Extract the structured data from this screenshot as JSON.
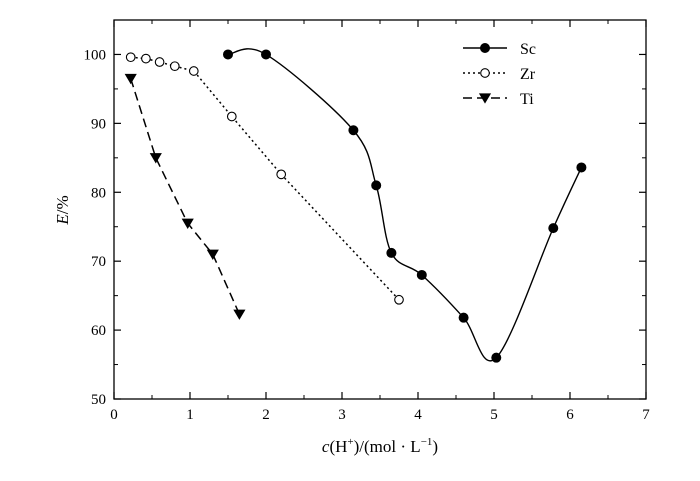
{
  "chart_data": {
    "type": "line",
    "title": "",
    "xlabel": {
      "italic": "c",
      "rest": "(H",
      "sup_plus": "+",
      "mid": ")/(mol · L",
      "sup_minus": "−1",
      "end": ")"
    },
    "ylabel": {
      "italic": "E",
      "rest": "/%"
    },
    "xlim": [
      0,
      7
    ],
    "ylim": [
      50,
      105
    ],
    "xticks": [
      "0",
      "1",
      "2",
      "3",
      "4",
      "5",
      "6",
      "7"
    ],
    "yticks": [
      "50",
      "60",
      "70",
      "80",
      "90",
      "100"
    ],
    "grid": false,
    "legend_position": "top-right",
    "series": [
      {
        "name": "Sc",
        "marker": "filled-circle",
        "line": "solid",
        "smooth": true,
        "color": "#000000",
        "x": [
          1.5,
          2.0,
          3.15,
          3.45,
          3.65,
          4.05,
          4.6,
          5.03,
          5.78,
          6.15
        ],
        "y": [
          100.0,
          100.0,
          89.0,
          81.0,
          71.2,
          68.0,
          61.8,
          56.0,
          74.8,
          83.6
        ]
      },
      {
        "name": "Zr",
        "marker": "open-circle",
        "line": "dotted",
        "smooth": false,
        "color": "#000000",
        "x": [
          0.22,
          0.42,
          0.6,
          0.8,
          1.05,
          1.55,
          2.2,
          3.75
        ],
        "y": [
          99.6,
          99.4,
          98.9,
          98.3,
          97.6,
          91.0,
          82.6,
          64.4
        ]
      },
      {
        "name": "Ti",
        "marker": "filled-triangle-down",
        "line": "dashed",
        "smooth": false,
        "color": "#000000",
        "x": [
          0.22,
          0.55,
          0.97,
          1.3,
          1.65
        ],
        "y": [
          96.5,
          85.0,
          75.5,
          71.0,
          62.3
        ]
      }
    ]
  }
}
